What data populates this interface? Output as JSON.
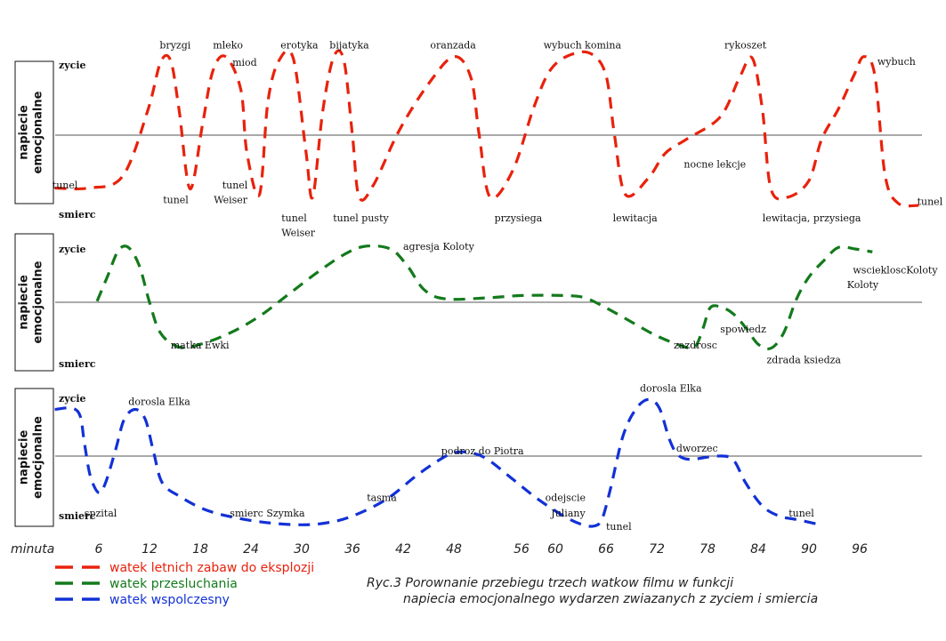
{
  "chart_data": {
    "type": "line",
    "xlabel": "minuta",
    "xticks": [
      6,
      12,
      18,
      24,
      30,
      36,
      42,
      48,
      56,
      60,
      66,
      72,
      78,
      84,
      90,
      96
    ],
    "legend": [
      {
        "name": "watek letnich zabaw do eksplozji",
        "color": "#e8220c"
      },
      {
        "name": "watek przesluchania",
        "color": "#137a1c"
      },
      {
        "name": "watek wspolczesny",
        "color": "#1231d6"
      }
    ],
    "caption_line1": "Ryc.3 Porownanie przebiegu  trzech watkow filmu w funkcji",
    "caption_line2": "napiecia emocjonalnego wydarzen zwiazanych z zyciem i smiercia",
    "panels": [
      {
        "id": "red",
        "ylabel_line1": "napiecie",
        "ylabel_line2": "emocjonalne",
        "top_label": "zycie",
        "bottom_label": "smierc",
        "color": "#e8220c",
        "ylim": [
          -1,
          1
        ],
        "points": [
          [
            0.8,
            -0.64
          ],
          [
            4.8,
            -0.64
          ],
          [
            8.8,
            -0.5
          ],
          [
            11.8,
            0.3
          ],
          [
            13.3,
            0.88
          ],
          [
            14.5,
            0.9
          ],
          [
            15.5,
            0.3
          ],
          [
            16.8,
            -0.65
          ],
          [
            18.3,
            0.15
          ],
          [
            19.5,
            0.78
          ],
          [
            21,
            0.95
          ],
          [
            22.8,
            0.55
          ],
          [
            23.5,
            -0.2
          ],
          [
            25,
            -0.72
          ],
          [
            26,
            0.4
          ],
          [
            27.3,
            0.9
          ],
          [
            29,
            0.93
          ],
          [
            30.5,
            -0.2
          ],
          [
            31.3,
            -0.75
          ],
          [
            32.5,
            0.3
          ],
          [
            33.8,
            0.95
          ],
          [
            35,
            0.9
          ],
          [
            36,
            0
          ],
          [
            36.8,
            -0.75
          ],
          [
            38.5,
            -0.6
          ],
          [
            41.5,
            0.05
          ],
          [
            45,
            0.62
          ],
          [
            48,
            0.95
          ],
          [
            50,
            0.7
          ],
          [
            51,
            0
          ],
          [
            52.3,
            -0.75
          ],
          [
            55,
            -0.42
          ],
          [
            57.5,
            0.35
          ],
          [
            59.5,
            0.8
          ],
          [
            62,
            0.98
          ],
          [
            64.3,
            0.98
          ],
          [
            66,
            0.72
          ],
          [
            67,
            0
          ],
          [
            68.3,
            -0.72
          ],
          [
            71,
            -0.52
          ],
          [
            73,
            -0.22
          ],
          [
            75.5,
            -0.05
          ],
          [
            79.5,
            0.22
          ],
          [
            81.8,
            0.7
          ],
          [
            83.3,
            0.93
          ],
          [
            84.5,
            0.3
          ],
          [
            85.5,
            -0.65
          ],
          [
            87.5,
            -0.75
          ],
          [
            90,
            -0.55
          ],
          [
            91.5,
            -0.05
          ],
          [
            93.5,
            0.32
          ],
          [
            95.3,
            0.72
          ],
          [
            96.5,
            0.95
          ],
          [
            97.8,
            0.72
          ],
          [
            99,
            -0.48
          ],
          [
            100.5,
            -0.82
          ],
          [
            103,
            -0.85
          ]
        ],
        "annotations": [
          {
            "text": "tunel",
            "x": 0.5,
            "y": -0.6
          },
          {
            "text": "bryzgi",
            "x": 13.2,
            "y": 1.09
          },
          {
            "text": "tunel",
            "x": 13.6,
            "y": -0.78
          },
          {
            "text": "mleko",
            "x": 19.5,
            "y": 1.09
          },
          {
            "text": "miod",
            "x": 21.8,
            "y": 0.88
          },
          {
            "text": "tunel",
            "x": 20.6,
            "y": -0.6
          },
          {
            "text": "Weiser",
            "x": 19.6,
            "y": -0.78
          },
          {
            "text": "erotyka",
            "x": 27.5,
            "y": 1.09
          },
          {
            "text": "tunel",
            "x": 27.6,
            "y": -1.0
          },
          {
            "text": "Weiser",
            "x": 27.6,
            "y": -1.18
          },
          {
            "text": "bijatyka",
            "x": 33.3,
            "y": 1.09
          },
          {
            "text": "tunel pusty",
            "x": 33.7,
            "y": -1.0
          },
          {
            "text": "oranzada",
            "x": 45.2,
            "y": 1.09
          },
          {
            "text": "przysiega",
            "x": 52.8,
            "y": -1.0
          },
          {
            "text": "wybuch komina",
            "x": 58.6,
            "y": 1.09
          },
          {
            "text": "lewitacja",
            "x": 66.8,
            "y": -1.0
          },
          {
            "text": "nocne lekcje",
            "x": 75.2,
            "y": -0.35
          },
          {
            "text": "rykoszet",
            "x": 80,
            "y": 1.09
          },
          {
            "text": "lewitacja, przysiega",
            "x": 84.5,
            "y": -1.0
          },
          {
            "text": "wybuch",
            "x": 98.1,
            "y": 0.89
          },
          {
            "text": "tunel",
            "x": 102.8,
            "y": -0.8
          }
        ]
      },
      {
        "id": "green",
        "ylabel_line1": "napiecie",
        "ylabel_line2": "emocjonalne",
        "top_label": "zycie",
        "bottom_label": "smierc",
        "color": "#137a1c",
        "ylim": [
          -1,
          1
        ],
        "points": [
          [
            5.8,
            0.02
          ],
          [
            7,
            0.45
          ],
          [
            8.3,
            0.92
          ],
          [
            9.5,
            0.98
          ],
          [
            10.8,
            0.65
          ],
          [
            12,
            0
          ],
          [
            13.3,
            -0.55
          ],
          [
            15.5,
            -0.8
          ],
          [
            18,
            -0.75
          ],
          [
            21.5,
            -0.55
          ],
          [
            25,
            -0.25
          ],
          [
            28.5,
            0.15
          ],
          [
            32,
            0.55
          ],
          [
            35,
            0.85
          ],
          [
            37.5,
            1.0
          ],
          [
            40.5,
            0.95
          ],
          [
            42.5,
            0.65
          ],
          [
            44.5,
            0.22
          ],
          [
            47,
            0.06
          ],
          [
            52,
            0.08
          ],
          [
            56,
            0.12
          ],
          [
            61,
            0.12
          ],
          [
            63.5,
            0.08
          ],
          [
            66,
            -0.1
          ],
          [
            69,
            -0.35
          ],
          [
            72,
            -0.6
          ],
          [
            75,
            -0.78
          ],
          [
            76.5,
            -0.8
          ],
          [
            77.5,
            -0.45
          ],
          [
            78.3,
            -0.1
          ],
          [
            79.5,
            -0.08
          ],
          [
            81,
            -0.2
          ],
          [
            82.5,
            -0.45
          ],
          [
            84,
            -0.75
          ],
          [
            85.5,
            -0.82
          ],
          [
            87,
            -0.55
          ],
          [
            88.5,
            0.05
          ],
          [
            90,
            0.45
          ],
          [
            91.8,
            0.75
          ],
          [
            93.5,
            0.98
          ],
          [
            95.5,
            0.95
          ],
          [
            97.5,
            0.9
          ]
        ],
        "annotations": [
          {
            "text": "matka Ewki",
            "x": 14.5,
            "y": -0.76
          },
          {
            "text": "agresja  Koloty",
            "x": 42,
            "y": 1.0
          },
          {
            "text": "zazdrosc",
            "x": 74,
            "y": -0.76
          },
          {
            "text": "spowiedz",
            "x": 79.5,
            "y": -0.48
          },
          {
            "text": "zdrada  ksiedza",
            "x": 85,
            "y": -1.02
          },
          {
            "text": "wsciekloscKoloty",
            "x": 95.2,
            "y": 0.58
          },
          {
            "text": "Koloty",
            "x": 94.5,
            "y": 0.32
          }
        ]
      },
      {
        "id": "blue",
        "ylabel_line1": "napiecie",
        "ylabel_line2": "emocjonalne",
        "top_label": "zycie",
        "bottom_label": "smierc",
        "color": "#1231d6",
        "ylim": [
          -1,
          1
        ],
        "points": [
          [
            0.8,
            0.7
          ],
          [
            2.8,
            0.72
          ],
          [
            3.8,
            0.6
          ],
          [
            4.3,
            0.2
          ],
          [
            5,
            -0.3
          ],
          [
            6,
            -0.55
          ],
          [
            6.8,
            -0.4
          ],
          [
            8,
            0.1
          ],
          [
            9,
            0.55
          ],
          [
            10.3,
            0.7
          ],
          [
            11.5,
            0.55
          ],
          [
            12.5,
            0.05
          ],
          [
            13.5,
            -0.4
          ],
          [
            15.5,
            -0.6
          ],
          [
            18.5,
            -0.8
          ],
          [
            22,
            -0.92
          ],
          [
            26,
            -1.0
          ],
          [
            30,
            -1.03
          ],
          [
            33,
            -1.0
          ],
          [
            36,
            -0.9
          ],
          [
            40,
            -0.65
          ],
          [
            43.5,
            -0.3
          ],
          [
            46,
            -0.08
          ],
          [
            48,
            0.05
          ],
          [
            50,
            0.05
          ],
          [
            52,
            -0.05
          ],
          [
            55,
            -0.35
          ],
          [
            58,
            -0.65
          ],
          [
            61,
            -0.9
          ],
          [
            63,
            -1.02
          ],
          [
            64.5,
            -1.05
          ],
          [
            65.5,
            -0.95
          ],
          [
            66.5,
            -0.5
          ],
          [
            68,
            0.3
          ],
          [
            69.5,
            0.7
          ],
          [
            71,
            0.85
          ],
          [
            72.3,
            0.72
          ],
          [
            73.5,
            0.25
          ],
          [
            74.5,
            0.02
          ],
          [
            76,
            -0.05
          ],
          [
            79,
            0.0
          ],
          [
            81,
            -0.05
          ],
          [
            82.5,
            -0.4
          ],
          [
            84.5,
            -0.75
          ],
          [
            86.5,
            -0.9
          ],
          [
            88.5,
            -0.95
          ],
          [
            91,
            -1.02
          ]
        ],
        "annotations": [
          {
            "text": "spzital",
            "x": 4.3,
            "y": -0.85
          },
          {
            "text": "dorosla Elka",
            "x": 9.5,
            "y": 0.82
          },
          {
            "text": "smierc Szymka",
            "x": 21.5,
            "y": -0.85
          },
          {
            "text": "tasma",
            "x": 37.7,
            "y": -0.62
          },
          {
            "text": "podroz do Piotra",
            "x": 46.5,
            "y": 0.08
          },
          {
            "text": "odejscie",
            "x": 58.8,
            "y": -0.62
          },
          {
            "text": "Juliany",
            "x": 59.5,
            "y": -0.85
          },
          {
            "text": "tunel",
            "x": 66,
            "y": -1.05
          },
          {
            "text": "dorosla Elka",
            "x": 70,
            "y": 1.02
          },
          {
            "text": "dworzec",
            "x": 74.3,
            "y": 0.12
          },
          {
            "text": "tunel",
            "x": 87.6,
            "y": -0.85
          }
        ]
      }
    ]
  }
}
